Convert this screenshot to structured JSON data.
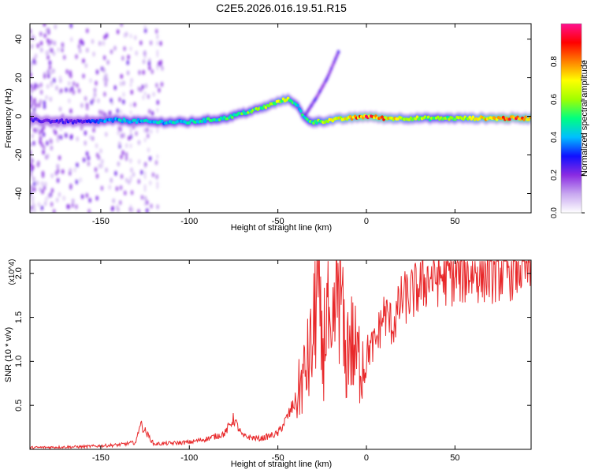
{
  "title": "C2E5.2026.016.19.51.R15",
  "chart_data": [
    {
      "type": "heatmap",
      "name": "spectrogram",
      "xlabel": "Height of straight line (km)",
      "ylabel": "Frequency (Hz)",
      "xlim": [
        -190,
        93
      ],
      "ylim": [
        -50,
        48
      ],
      "xticks": [
        -150,
        -100,
        -50,
        0,
        50
      ],
      "yticks": [
        -40,
        -20,
        0,
        20,
        40
      ],
      "colorbar": {
        "label": "Normalized spectral amplitude",
        "range": [
          0,
          1
        ],
        "ticks": [
          0.0,
          0.2,
          0.4,
          0.6,
          0.8
        ],
        "colormap": [
          "#ffffff",
          "#c8a8f0",
          "#8a2be2",
          "#1010ff",
          "#00bfff",
          "#00ff80",
          "#a0ff00",
          "#ffff00",
          "#ff8000",
          "#ff0000",
          "#ff1090"
        ]
      },
      "ridge": {
        "x": [
          -190,
          -160,
          -140,
          -120,
          -100,
          -80,
          -60,
          -45,
          -40,
          -35,
          -30,
          -20,
          -10,
          0,
          10,
          20,
          40,
          60,
          80,
          93
        ],
        "y": [
          -2,
          -3,
          -2,
          -3,
          -3,
          -1,
          4,
          9,
          7,
          -1,
          -3,
          -2,
          -1,
          0,
          -1,
          -1,
          -1,
          -1,
          -1,
          -1
        ],
        "amplitude": [
          0.25,
          0.3,
          0.45,
          0.45,
          0.5,
          0.55,
          0.6,
          0.7,
          0.5,
          0.5,
          0.6,
          0.7,
          0.8,
          0.95,
          0.85,
          0.7,
          0.6,
          0.7,
          0.95,
          0.8
        ]
      },
      "branch": {
        "x": [
          -35,
          -28,
          -22,
          -15
        ],
        "y": [
          0,
          10,
          20,
          35
        ]
      }
    },
    {
      "type": "line",
      "name": "snr",
      "xlabel": "Height of straight line (km)",
      "ylabel": "SNR (10 * v/v)",
      "multiplier": "(x10^4)",
      "xlim": [
        -190,
        93
      ],
      "ylim": [
        0,
        2.15
      ],
      "xticks": [
        -150,
        -100,
        -50,
        0,
        50
      ],
      "yticks": [
        0.5,
        1.0,
        1.5,
        2.0
      ],
      "color": "#e8282a",
      "x": [
        -190,
        -160,
        -140,
        -130,
        -128,
        -120,
        -100,
        -90,
        -80,
        -75,
        -70,
        -60,
        -50,
        -45,
        -40,
        -35,
        -30,
        -28,
        -25,
        -22,
        -20,
        -18,
        -15,
        -12,
        -10,
        -5,
        0,
        5,
        10,
        15,
        20,
        25,
        30,
        35,
        40,
        50,
        60,
        70,
        80,
        85,
        90,
        93
      ],
      "y": [
        0.02,
        0.03,
        0.05,
        0.08,
        0.3,
        0.06,
        0.08,
        0.12,
        0.18,
        0.35,
        0.15,
        0.12,
        0.18,
        0.35,
        0.55,
        0.85,
        1.2,
        2.0,
        1.0,
        1.7,
        0.8,
        1.5,
        2.1,
        0.9,
        1.3,
        1.0,
        1.1,
        1.2,
        1.55,
        1.4,
        1.7,
        1.75,
        1.85,
        1.95,
        1.97,
        1.98,
        2.02,
        2.02,
        2.05,
        2.08,
        2.1,
        2.05
      ]
    }
  ]
}
